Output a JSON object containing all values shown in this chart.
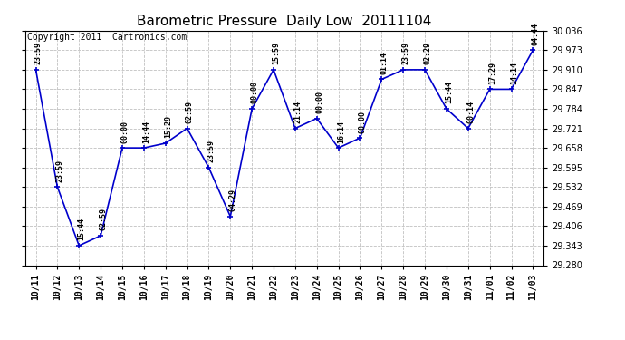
{
  "title": "Barometric Pressure  Daily Low  20111104",
  "copyright": "Copyright 2011  Cartronics.com",
  "x_labels": [
    "10/11",
    "10/12",
    "10/13",
    "10/14",
    "10/15",
    "10/16",
    "10/17",
    "10/18",
    "10/19",
    "10/20",
    "10/21",
    "10/22",
    "10/23",
    "10/24",
    "10/25",
    "10/26",
    "10/27",
    "10/28",
    "10/29",
    "10/30",
    "10/31",
    "11/01",
    "11/02",
    "11/03"
  ],
  "y_values": [
    29.91,
    29.532,
    29.343,
    29.375,
    29.658,
    29.658,
    29.673,
    29.721,
    29.595,
    29.437,
    29.784,
    29.91,
    29.721,
    29.753,
    29.658,
    29.69,
    29.879,
    29.91,
    29.91,
    29.784,
    29.721,
    29.847,
    29.847,
    29.973
  ],
  "point_labels": [
    "23:59",
    "23:59",
    "15:44",
    "02:59",
    "00:00",
    "14:44",
    "15:29",
    "02:59",
    "23:59",
    "04:29",
    "00:00",
    "15:59",
    "21:14",
    "00:00",
    "16:14",
    "00:00",
    "01:14",
    "23:59",
    "02:29",
    "15:44",
    "00:14",
    "17:29",
    "14:14",
    "04:44"
  ],
  "line_color": "#0000cc",
  "marker_color": "#0000cc",
  "bg_color": "#ffffff",
  "grid_color": "#c0c0c0",
  "ylim_min": 29.28,
  "ylim_max": 30.036,
  "ytick_step": 0.063,
  "title_fontsize": 11,
  "label_fontsize": 7,
  "copyright_fontsize": 7,
  "point_label_fontsize": 6
}
